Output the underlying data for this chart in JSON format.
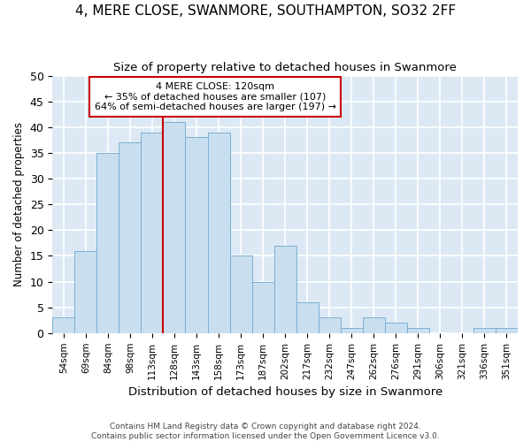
{
  "title": "4, MERE CLOSE, SWANMORE, SOUTHAMPTON, SO32 2FF",
  "subtitle": "Size of property relative to detached houses in Swanmore",
  "xlabel": "Distribution of detached houses by size in Swanmore",
  "ylabel": "Number of detached properties",
  "bar_color": "#c9dff0",
  "bar_edge_color": "#7bafd4",
  "background_color": "#dce9f5",
  "grid_color": "#ffffff",
  "categories": [
    "54sqm",
    "69sqm",
    "84sqm",
    "98sqm",
    "113sqm",
    "128sqm",
    "143sqm",
    "158sqm",
    "173sqm",
    "187sqm",
    "202sqm",
    "217sqm",
    "232sqm",
    "247sqm",
    "262sqm",
    "276sqm",
    "291sqm",
    "306sqm",
    "321sqm",
    "336sqm",
    "351sqm"
  ],
  "values": [
    3,
    16,
    35,
    37,
    39,
    41,
    38,
    39,
    15,
    10,
    17,
    6,
    3,
    1,
    3,
    2,
    1,
    0,
    0,
    1,
    1
  ],
  "ylim": [
    0,
    50
  ],
  "yticks": [
    0,
    5,
    10,
    15,
    20,
    25,
    30,
    35,
    40,
    45,
    50
  ],
  "vline_index": 5,
  "vline_color": "#cc0000",
  "annotation_title": "4 MERE CLOSE: 120sqm",
  "annotation_line1": "← 35% of detached houses are smaller (107)",
  "annotation_line2": "64% of semi-detached houses are larger (197) →",
  "annotation_box_color": "#ffffff",
  "annotation_box_edge": "#cc0000",
  "footer1": "Contains HM Land Registry data © Crown copyright and database right 2024.",
  "footer2": "Contains public sector information licensed under the Open Government Licence v3.0."
}
